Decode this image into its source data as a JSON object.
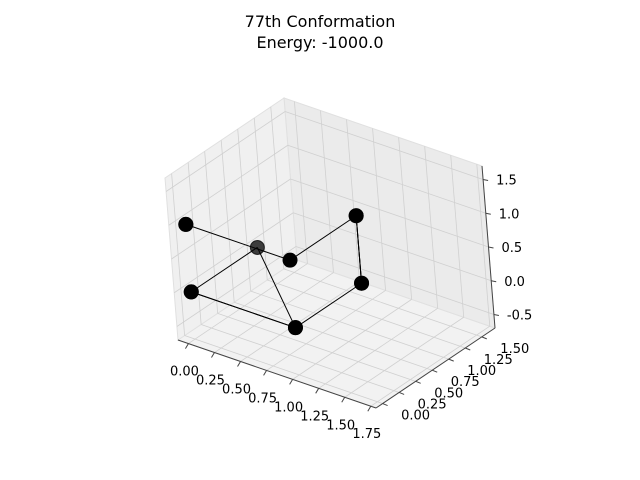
{
  "chart_data": {
    "type": "scatter",
    "projection": "3d",
    "title_lines": [
      "77th Conformation",
      "Energy: -1000.0"
    ],
    "xlabel": "",
    "ylabel": "",
    "zlabel": "",
    "xlim": [
      -0.1,
      1.8
    ],
    "ylim": [
      -0.1,
      1.7
    ],
    "zlim": [
      -0.7,
      1.7
    ],
    "x_ticks": [
      "0.00",
      "0.25",
      "0.50",
      "0.75",
      "1.00",
      "1.25",
      "1.50",
      "1.75"
    ],
    "y_ticks": [
      "0.00",
      "0.25",
      "0.50",
      "0.75",
      "1.00",
      "1.25",
      "1.50"
    ],
    "z_ticks": [
      "-0.5",
      "0.0",
      "0.5",
      "1.0",
      "1.5"
    ],
    "grid": true,
    "marker_color": "#000000",
    "line_color": "#000000",
    "chain_order": [
      0,
      1,
      2,
      3,
      4,
      5,
      6,
      7,
      8,
      9,
      10,
      11
    ],
    "points": [
      {
        "x": 0.0,
        "y": 0.0,
        "z": 0.0
      },
      {
        "x": 0.0,
        "y": 1.0,
        "z": 0.0
      },
      {
        "x": 1.0,
        "y": 0.0,
        "z": 0.0
      },
      {
        "x": 0.0,
        "y": 0.0,
        "z": 0.0
      },
      {
        "x": 1.0,
        "y": 0.0,
        "z": 0.0
      },
      {
        "x": 1.0,
        "y": 1.0,
        "z": 0.0
      },
      {
        "x": 1.0,
        "y": 1.0,
        "z": 1.0
      },
      {
        "x": 1.0,
        "y": 1.0,
        "z": 0.0
      },
      {
        "x": 1.0,
        "y": 1.0,
        "z": 1.0
      },
      {
        "x": 1.0,
        "y": 0.0,
        "z": 1.0
      },
      {
        "x": 0.0,
        "y": 0.0,
        "z": 1.0
      },
      {
        "x": 0.0,
        "y": 0.0,
        "z": 1.0
      }
    ]
  }
}
